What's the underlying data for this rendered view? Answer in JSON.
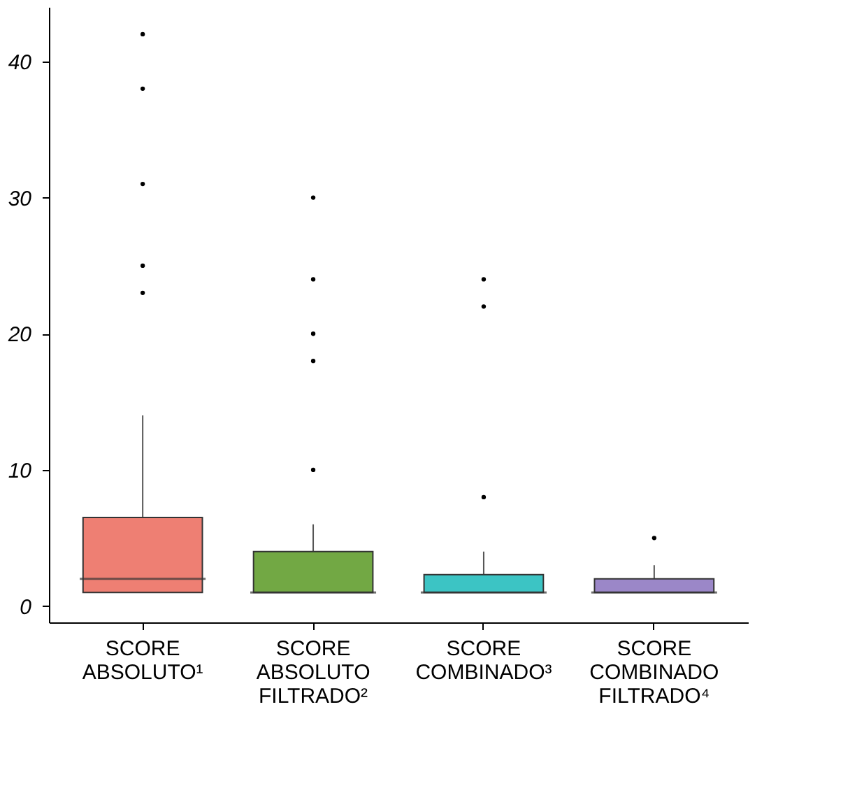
{
  "chart_data": {
    "type": "box",
    "categories": [
      "SCORE ABSOLUTO¹",
      "SCORE ABSOLUTO FILTRADO²",
      "SCORE COMBINADO³",
      "SCORE COMBINADO FILTRADO⁴"
    ],
    "colors": [
      "#ee7f73",
      "#72a844",
      "#3cc4c4",
      "#9b87c8"
    ],
    "boxes": [
      {
        "low": 1,
        "q1": 1,
        "median": 2,
        "q3": 6.5,
        "high": 14,
        "outliers": [
          23,
          25,
          31,
          38,
          42
        ]
      },
      {
        "low": 1,
        "q1": 1,
        "median": 1,
        "q3": 4,
        "high": 6,
        "outliers": [
          10,
          18,
          20,
          24,
          30
        ]
      },
      {
        "low": 1,
        "q1": 1,
        "median": 1,
        "q3": 2.3,
        "high": 4,
        "outliers": [
          8,
          22,
          24
        ]
      },
      {
        "low": 1,
        "q1": 1,
        "median": 1,
        "q3": 2,
        "high": 3,
        "outliers": [
          5
        ]
      }
    ],
    "ylim": [
      -1.2,
      44
    ],
    "yticks": [
      0,
      10,
      20,
      30,
      40
    ],
    "grid": false
  }
}
